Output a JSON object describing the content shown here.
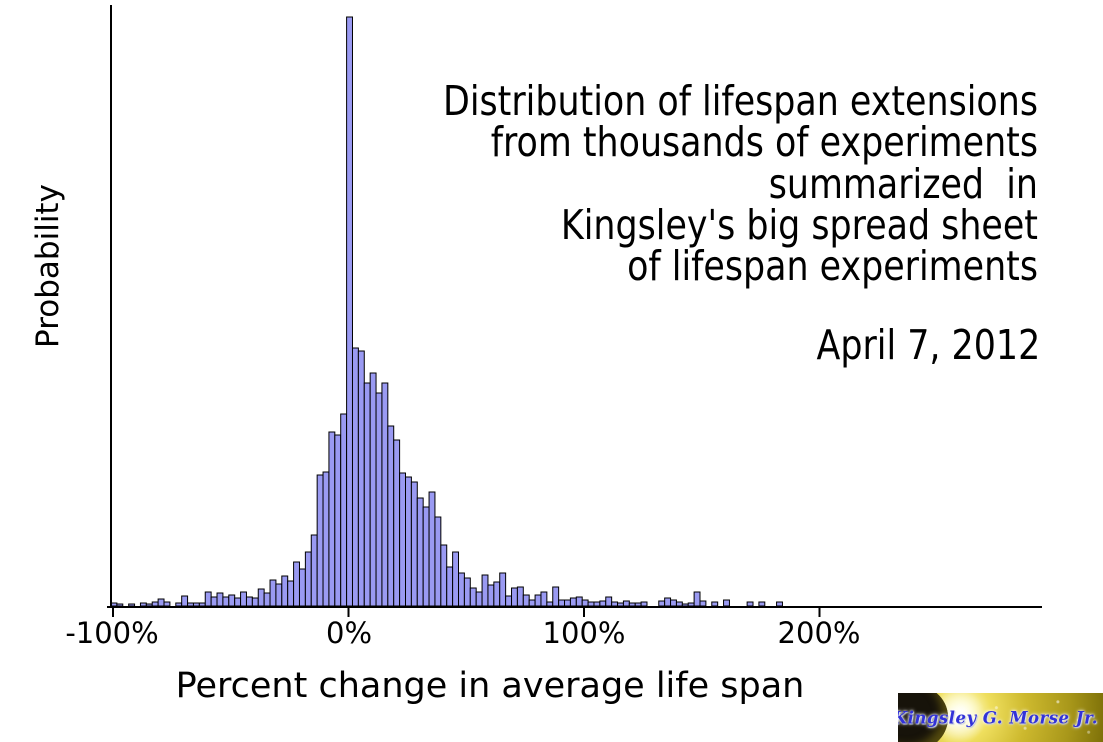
{
  "colors": {
    "background": "#ffffff",
    "bar_fill": "#9a9af2",
    "bar_stroke": "#000000",
    "axis": "#000000",
    "text": "#000000",
    "logo_gold": "#cdb92e",
    "logo_text_blue": "#3232d8"
  },
  "header": {
    "title_lines": [
      "Distribution of lifespan extensions",
      "from thousands of experiments",
      "summarized  in",
      "Kingsley's big spread sheet",
      "of lifespan experiments"
    ],
    "date": "April 7, 2012"
  },
  "watermark": {
    "signature": "Kingsley G. Morse Jr."
  },
  "chart_data": {
    "type": "bar",
    "subtype": "histogram",
    "title": "Distribution of lifespan extensions from thousands of experiments summarized in Kingsley's big spread sheet of lifespan experiments",
    "annotation_date": "April 7, 2012",
    "xlabel": "Percent change in average life span",
    "ylabel": "Probability",
    "grid": false,
    "legend": "none",
    "x_ticks": [
      {
        "label": "-100%",
        "value": -100
      },
      {
        "label": "0%",
        "value": 0
      },
      {
        "label": "100%",
        "value": 100
      },
      {
        "label": "200%",
        "value": 200
      }
    ],
    "x_axis_range_percent": [
      -101,
      295
    ],
    "y_axis_note": "probability axis has no numeric tick labels; heights are relative to the modal bin at 0%",
    "bin_start_percent": -100,
    "bin_width_percent": 2.5,
    "bar_heights_rel_to_peak": [
      0.005,
      0.003,
      0,
      0.003,
      0,
      0.005,
      0.003,
      0.007,
      0.012,
      0.007,
      0,
      0.005,
      0.017,
      0.005,
      0.005,
      0.005,
      0.024,
      0.015,
      0.022,
      0.015,
      0.019,
      0.014,
      0.024,
      0.015,
      0.014,
      0.029,
      0.022,
      0.044,
      0.037,
      0.051,
      0.042,
      0.075,
      0.063,
      0.092,
      0.121,
      0.222,
      0.228,
      0.295,
      0.29,
      0.326,
      1.0,
      0.438,
      0.433,
      0.379,
      0.396,
      0.362,
      0.379,
      0.306,
      0.282,
      0.226,
      0.219,
      0.211,
      0.183,
      0.168,
      0.194,
      0.151,
      0.104,
      0.066,
      0.092,
      0.056,
      0.048,
      0.031,
      0.024,
      0.053,
      0.036,
      0.041,
      0.056,
      0.017,
      0.031,
      0.032,
      0.019,
      0.01,
      0.019,
      0.024,
      0.007,
      0.032,
      0.01,
      0.01,
      0.014,
      0.015,
      0.01,
      0.007,
      0.007,
      0.008,
      0.015,
      0.007,
      0.005,
      0.008,
      0.005,
      0.005,
      0.007,
      0,
      0,
      0.008,
      0.014,
      0.01,
      0.007,
      0.003,
      0.005,
      0.024,
      0.008,
      0,
      0.007,
      0,
      0.01,
      0,
      0,
      0,
      0.007,
      0,
      0.007,
      0,
      0,
      0.007,
      0,
      0,
      0,
      0,
      0,
      0,
      0,
      0,
      0,
      0,
      0,
      0,
      0,
      0,
      0,
      0,
      0,
      0,
      0,
      0,
      0,
      0,
      0,
      0,
      0,
      0,
      0,
      0,
      0,
      0,
      0,
      0,
      0,
      0,
      0,
      0,
      0,
      0,
      0,
      0,
      0,
      0,
      0,
      0
    ]
  }
}
